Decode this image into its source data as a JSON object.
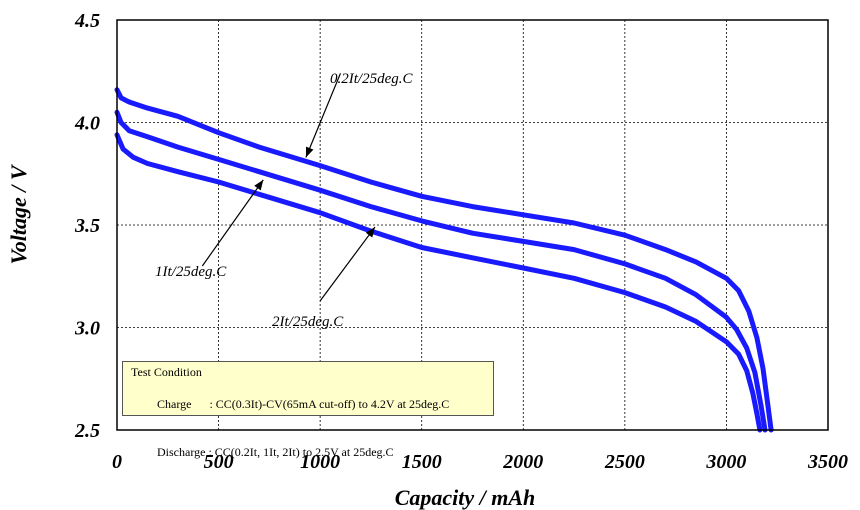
{
  "chart_data": {
    "type": "line",
    "xlabel": "Capacity / mAh",
    "ylabel": "Voltage / V",
    "xlim": [
      0,
      3500
    ],
    "ylim": [
      2.5,
      4.5
    ],
    "xticks": [
      "0",
      "500",
      "1000",
      "1500",
      "2000",
      "2500",
      "3000",
      "3500"
    ],
    "yticks": [
      "2.5",
      "3.0",
      "3.5",
      "4.0",
      "4.5"
    ],
    "grid": true,
    "series": [
      {
        "name": "0.2It/25deg.C",
        "color": "#1a1aff",
        "points": [
          [
            0,
            4.16
          ],
          [
            20,
            4.12
          ],
          [
            60,
            4.1
          ],
          [
            150,
            4.07
          ],
          [
            300,
            4.03
          ],
          [
            500,
            3.95
          ],
          [
            700,
            3.88
          ],
          [
            1000,
            3.79
          ],
          [
            1250,
            3.71
          ],
          [
            1500,
            3.64
          ],
          [
            1750,
            3.59
          ],
          [
            2000,
            3.55
          ],
          [
            2250,
            3.51
          ],
          [
            2500,
            3.45
          ],
          [
            2700,
            3.38
          ],
          [
            2850,
            3.32
          ],
          [
            3000,
            3.24
          ],
          [
            3060,
            3.18
          ],
          [
            3110,
            3.08
          ],
          [
            3150,
            2.95
          ],
          [
            3180,
            2.8
          ],
          [
            3200,
            2.65
          ],
          [
            3220,
            2.5
          ]
        ]
      },
      {
        "name": "1It/25deg.C",
        "color": "#1a1aff",
        "points": [
          [
            0,
            4.05
          ],
          [
            20,
            4.0
          ],
          [
            60,
            3.96
          ],
          [
            150,
            3.93
          ],
          [
            300,
            3.88
          ],
          [
            500,
            3.82
          ],
          [
            700,
            3.76
          ],
          [
            1000,
            3.67
          ],
          [
            1250,
            3.59
          ],
          [
            1500,
            3.52
          ],
          [
            1750,
            3.46
          ],
          [
            2000,
            3.42
          ],
          [
            2250,
            3.38
          ],
          [
            2500,
            3.31
          ],
          [
            2700,
            3.24
          ],
          [
            2850,
            3.16
          ],
          [
            3000,
            3.05
          ],
          [
            3050,
            2.99
          ],
          [
            3100,
            2.9
          ],
          [
            3140,
            2.78
          ],
          [
            3170,
            2.62
          ],
          [
            3190,
            2.5
          ]
        ]
      },
      {
        "name": "2It/25deg.C",
        "color": "#1a1aff",
        "points": [
          [
            0,
            3.94
          ],
          [
            30,
            3.87
          ],
          [
            80,
            3.83
          ],
          [
            150,
            3.8
          ],
          [
            300,
            3.76
          ],
          [
            500,
            3.71
          ],
          [
            700,
            3.65
          ],
          [
            1000,
            3.56
          ],
          [
            1250,
            3.47
          ],
          [
            1500,
            3.39
          ],
          [
            1750,
            3.34
          ],
          [
            2000,
            3.29
          ],
          [
            2250,
            3.24
          ],
          [
            2500,
            3.17
          ],
          [
            2700,
            3.1
          ],
          [
            2850,
            3.03
          ],
          [
            3000,
            2.93
          ],
          [
            3060,
            2.87
          ],
          [
            3100,
            2.79
          ],
          [
            3130,
            2.68
          ],
          [
            3150,
            2.58
          ],
          [
            3165,
            2.5
          ]
        ]
      }
    ],
    "annotations": [
      {
        "text": "0.2It/25deg.C",
        "from": [
          1100,
          4.24
        ],
        "to": [
          930,
          3.83
        ]
      },
      {
        "text": "1It/25deg.C",
        "from": [
          420,
          3.3
        ],
        "to": [
          720,
          3.72
        ]
      },
      {
        "text": "2It/25deg.C",
        "from": [
          1000,
          3.13
        ],
        "to": [
          1270,
          3.49
        ]
      }
    ]
  },
  "test_condition": {
    "title": "Test Condition",
    "rows": [
      {
        "label": "Charge      ",
        "value": ": CC(0.3It)-CV(65mA cut-off) to 4.2V at 25deg.C"
      },
      {
        "label": "Discharge ",
        "value": ": CC(0.2It, 1It, 2It) to 2.5V at 25deg.C"
      }
    ]
  }
}
